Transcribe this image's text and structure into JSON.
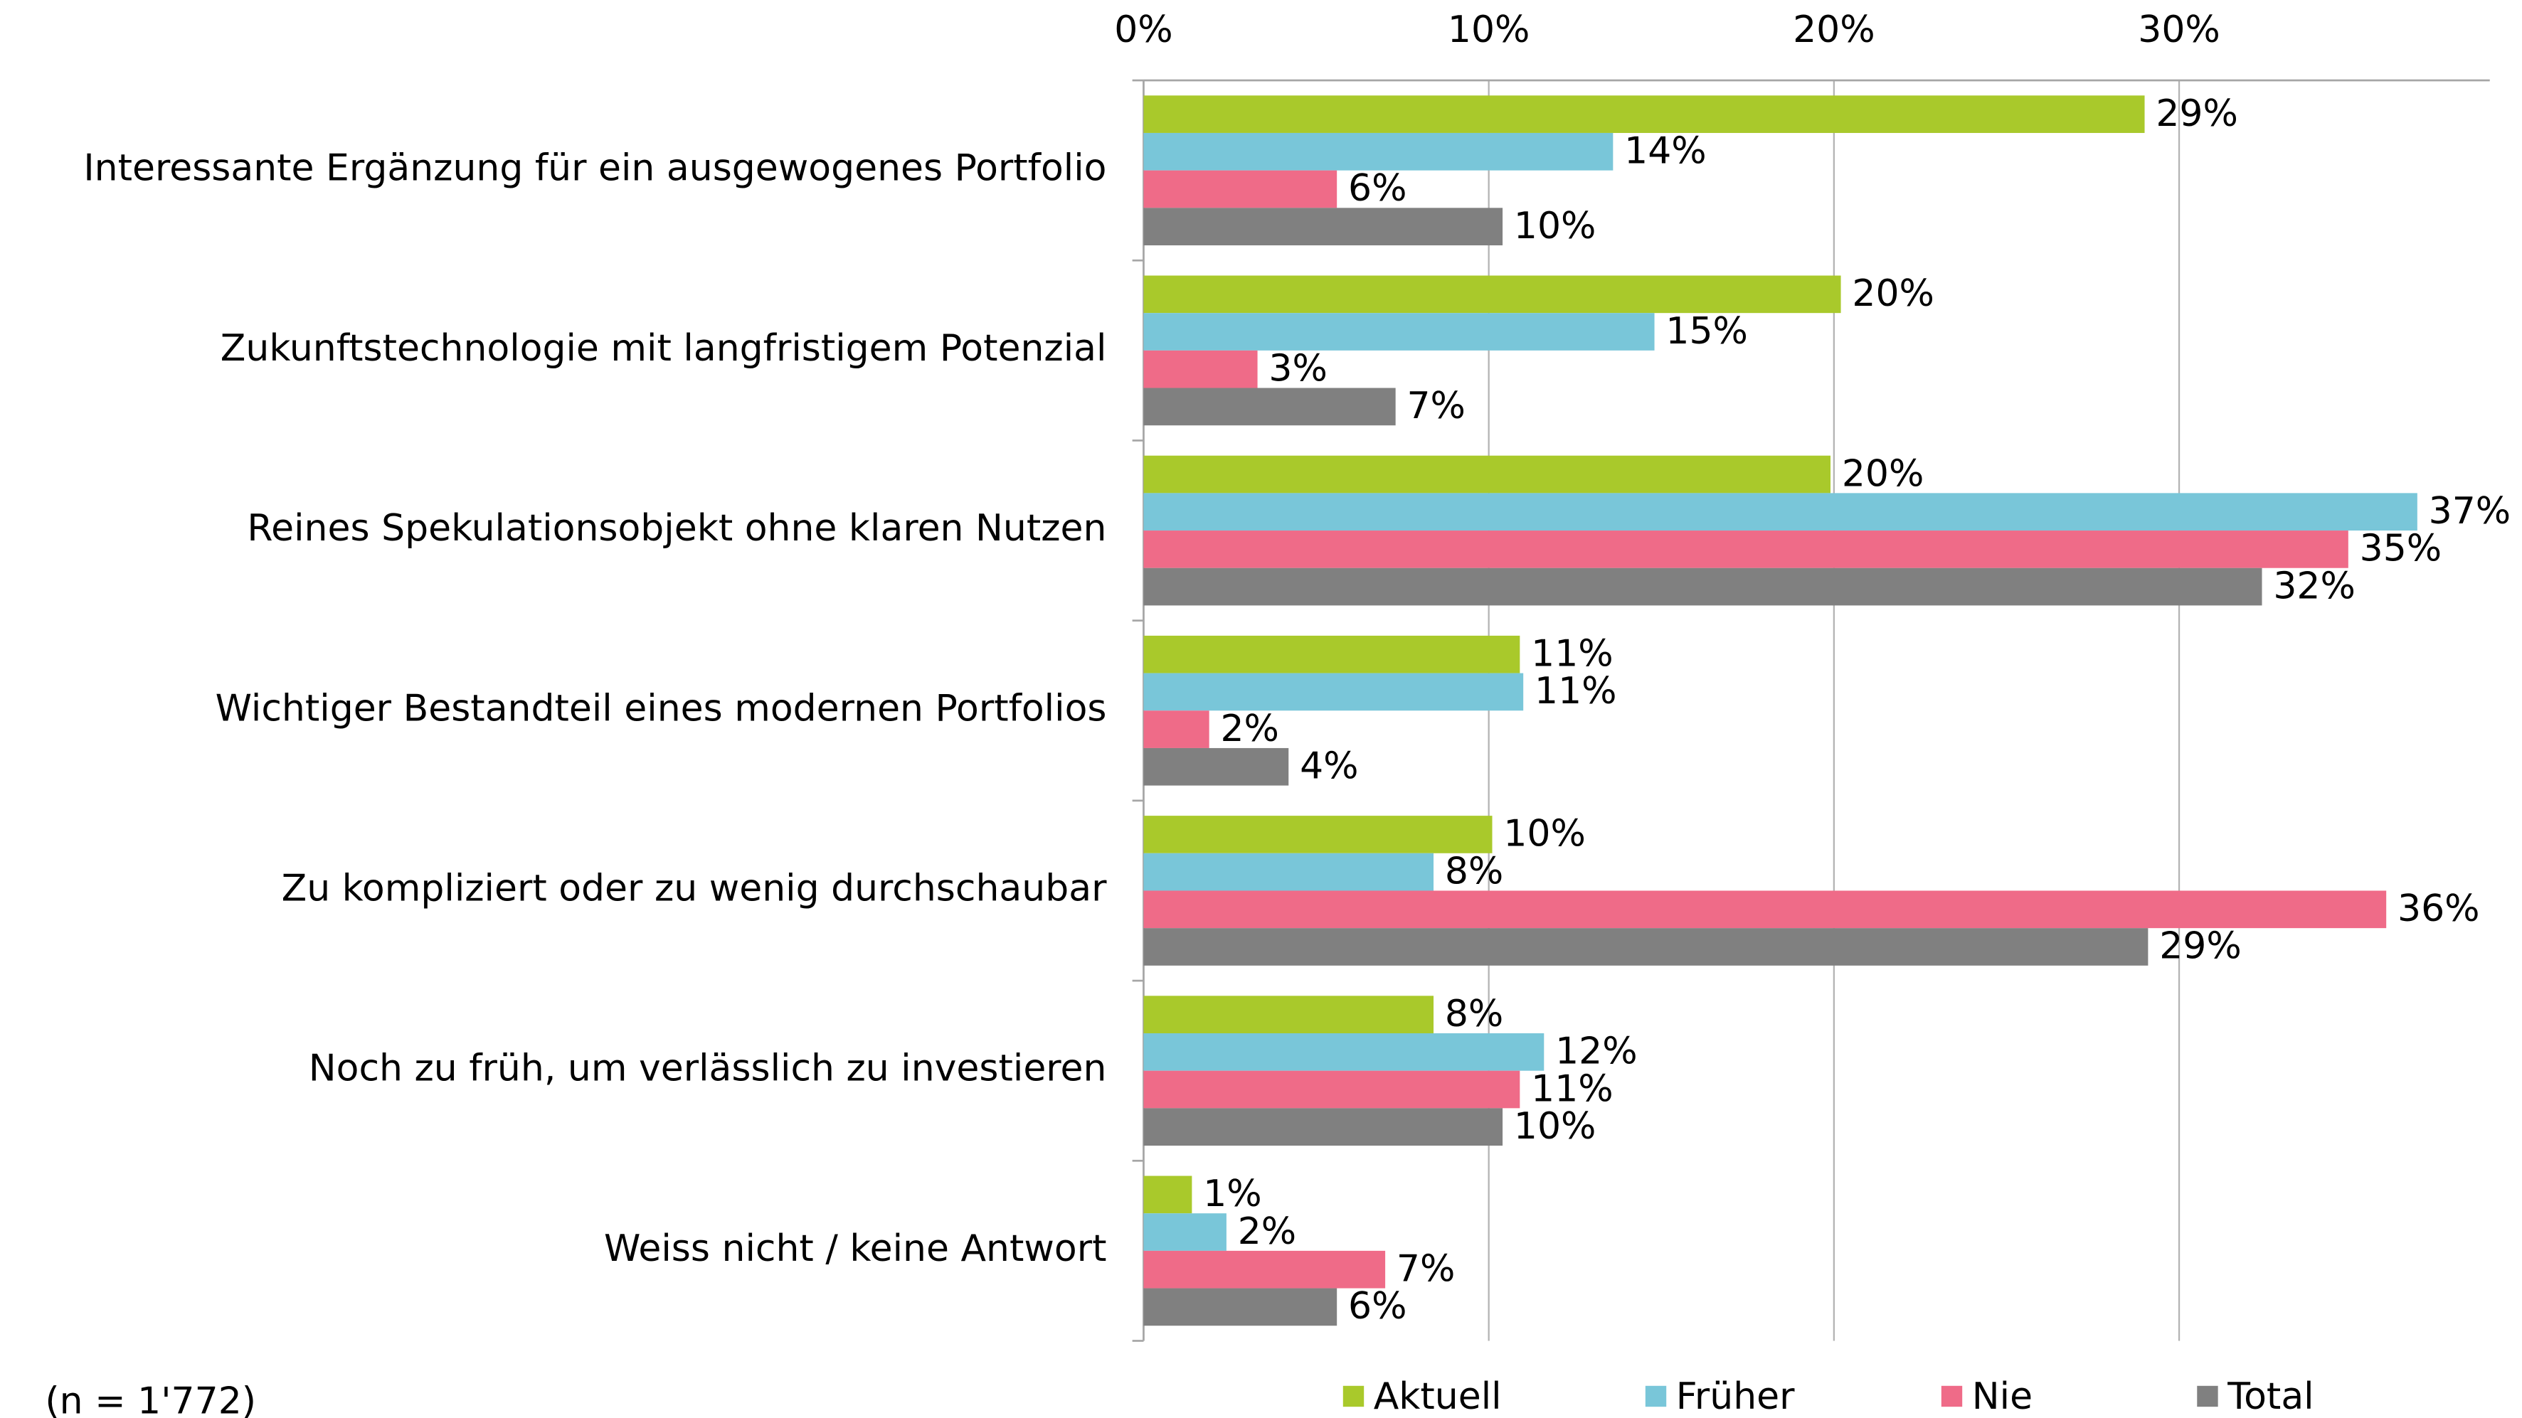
{
  "chart_data": {
    "type": "bar",
    "orientation": "horizontal",
    "categories": [
      "Interessante Ergänzung für ein ausgewogenes Portfolio",
      "Zukunftstechnologie mit langfristigem Potenzial",
      "Reines Spekulationsobjekt ohne klaren Nutzen",
      "Wichtiger Bestandteil eines modernen Portfolios",
      "Zu kompliziert oder zu wenig durchschaubar",
      "Noch zu früh, um verlässlich zu investieren",
      "Weiss nicht / keine Antwort"
    ],
    "series": [
      {
        "name": "Aktuell",
        "color": "#a9c92b",
        "values": [
          29.0,
          20.2,
          19.9,
          10.9,
          10.1,
          8.4,
          1.4
        ],
        "value_labels": [
          "29%",
          "20%",
          "20%",
          "11%",
          "10%",
          "8%",
          "1%"
        ]
      },
      {
        "name": "Früher",
        "color": "#79c6d9",
        "values": [
          13.6,
          14.8,
          36.9,
          11.0,
          8.4,
          11.6,
          2.4
        ],
        "value_labels": [
          "14%",
          "15%",
          "37%",
          "11%",
          "8%",
          "12%",
          "2%"
        ]
      },
      {
        "name": "Nie",
        "color": "#ef6b88",
        "values": [
          5.6,
          3.3,
          34.9,
          1.9,
          36.0,
          10.9,
          7.0
        ],
        "value_labels": [
          "6%",
          "3%",
          "35%",
          "2%",
          "36%",
          "11%",
          "7%"
        ]
      },
      {
        "name": "Total",
        "color": "#808080",
        "values": [
          10.4,
          7.3,
          32.4,
          4.2,
          29.1,
          10.4,
          5.6
        ],
        "value_labels": [
          "10%",
          "7%",
          "32%",
          "4%",
          "29%",
          "10%",
          "6%"
        ]
      }
    ],
    "xlim": [
      0,
      39
    ],
    "xticks": [
      {
        "value": 0,
        "label": "0%"
      },
      {
        "value": 10,
        "label": "10%"
      },
      {
        "value": 20,
        "label": "20%"
      },
      {
        "value": 30,
        "label": "30%"
      }
    ],
    "grid": true,
    "legend": "bottom",
    "note": "(n = 1'772)"
  }
}
